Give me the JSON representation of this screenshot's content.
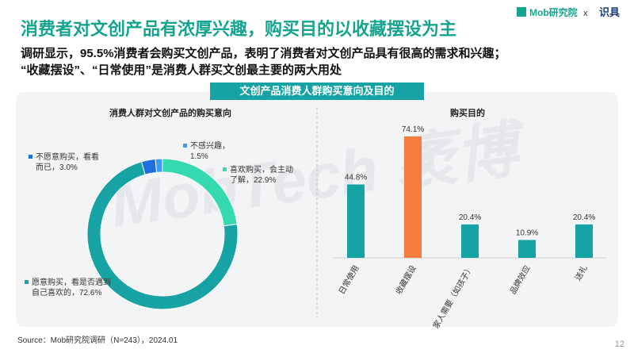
{
  "title": "消费者对文创产品有浓厚兴趣，购买目的以收藏摆设为主",
  "subtitle": [
    "调研显示，95.5%消费者会购买文创产品，表明了消费者对文创产品具有很高的需求和兴趣；",
    "“收藏摆设”、“日常使用”是消费人群买文创最主要的两大用处"
  ],
  "banner": "文创产品消费人群购买意向及目的",
  "logo": [
    "Mob研究院",
    "x",
    "识具"
  ],
  "watermark": "MobTech 袤博",
  "source": "Source：Mob研究院调研（N=243），2024.01",
  "page_number": "12",
  "chart_data": [
    {
      "type": "donut",
      "title": "消费人群对文创产品的购买意向",
      "categories": [
        "喜欢购买，会主动了解，",
        "愿意购买，看是否遇到自己喜欢的，",
        "不愿意购买，看看而已，",
        "不感兴趣，"
      ],
      "values": [
        22.9,
        72.6,
        3.0,
        1.5
      ],
      "value_labels": [
        "22.9%",
        "72.6%",
        "3.0%",
        "1.5%"
      ],
      "colors": [
        "#34d9b0",
        "#17a2a4",
        "#1d6fdc",
        "#3a9cf2"
      ]
    },
    {
      "type": "bar",
      "title": "购买目的",
      "categories": [
        "日常使用",
        "收藏摆设",
        "家人需要（如孩子）",
        "品牌效应",
        "送礼"
      ],
      "values": [
        44.8,
        74.1,
        20.4,
        10.9,
        20.4
      ],
      "value_labels": [
        "44.8%",
        "74.1%",
        "20.4%",
        "10.9%",
        "20.4%"
      ],
      "colors": [
        "#17a2a4",
        "#f47c3c",
        "#17a2a4",
        "#17a2a4",
        "#17a2a4"
      ]
    }
  ]
}
